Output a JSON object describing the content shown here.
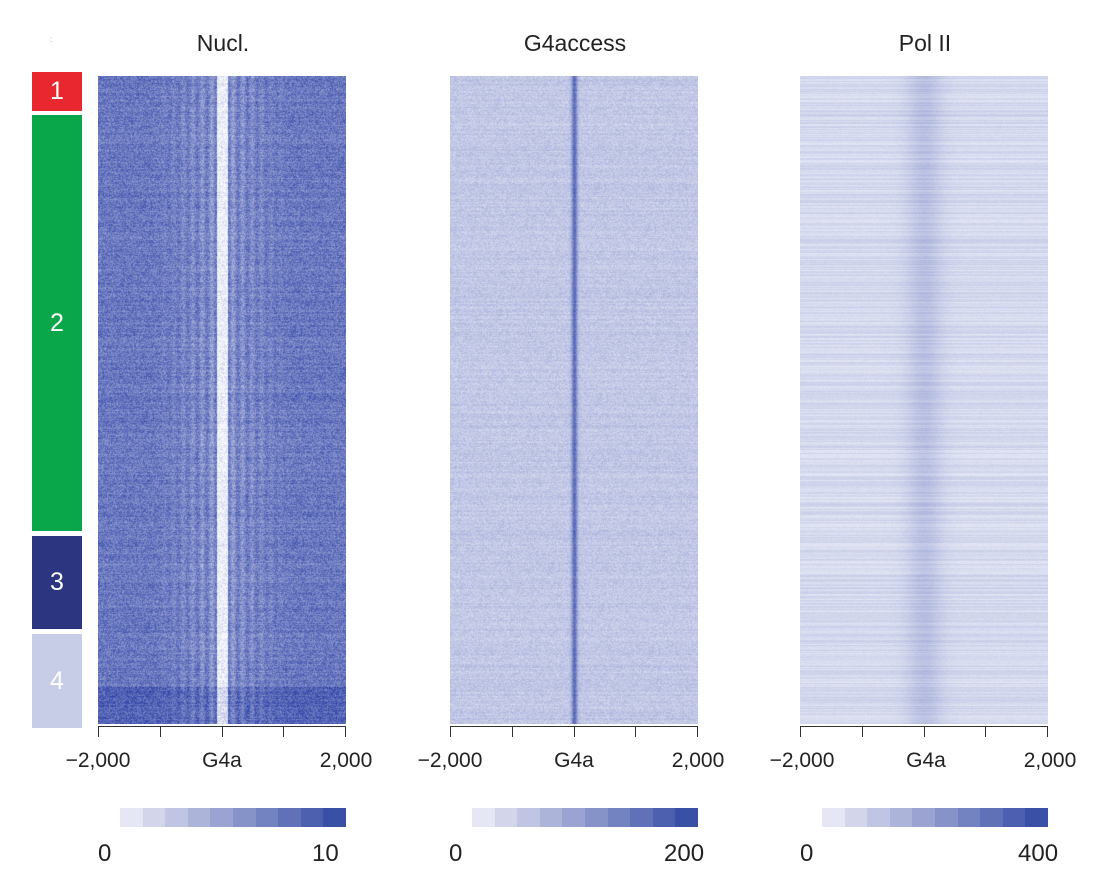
{
  "chart_data": {
    "type": "heatmap",
    "row_groups": [
      {
        "label": "1",
        "color": "#e8282e"
      },
      {
        "label": "2",
        "color": "#0aa64a"
      },
      {
        "label": "3",
        "color": "#2b3580"
      },
      {
        "label": "4",
        "color": "#c7cde6"
      }
    ],
    "panels": [
      {
        "title": "Nucl.",
        "x_ticks": [
          "−2,000",
          "G4a",
          "2,000"
        ],
        "x_range": [
          -2000,
          2000
        ],
        "colorbar": {
          "min": "0",
          "max": "10",
          "low_color": "#e6e7f4",
          "high_color": "#3a4fa6"
        },
        "profile": "nucleosome",
        "base_level": 0.72
      },
      {
        "title": "G4access",
        "x_ticks": [
          "−2,000",
          "G4a",
          "2,000"
        ],
        "x_range": [
          -2000,
          2000
        ],
        "colorbar": {
          "min": "0",
          "max": "200",
          "low_color": "#e6e7f4",
          "high_color": "#3a4fa6"
        },
        "profile": "accessibility_peak",
        "base_level": 0.28
      },
      {
        "title": "Pol II",
        "x_ticks": [
          "−2,000",
          "G4a",
          "2,000"
        ],
        "x_range": [
          -2000,
          2000
        ],
        "colorbar": {
          "min": "0",
          "max": "400",
          "low_color": "#e6e7f4",
          "high_color": "#3a4fa6"
        },
        "profile": "broad_peak",
        "base_level": 0.2
      }
    ],
    "colorbar_steps": 10
  }
}
